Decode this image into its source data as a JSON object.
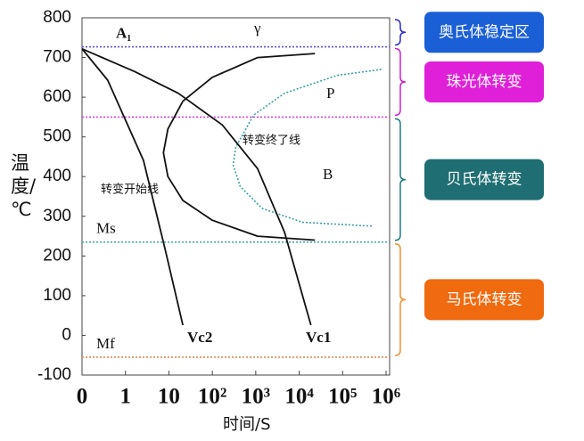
{
  "chart_data": {
    "type": "line",
    "x_label": "时间/S",
    "y_label": "温度/℃",
    "xscale": "log",
    "xlim": [
      0.1,
      1000000
    ],
    "ylim": [
      -100,
      800
    ],
    "xticks": [
      {
        "value": 0.1,
        "label": "0"
      },
      1,
      10,
      {
        "value": 100,
        "label": "10²"
      },
      {
        "value": 1000,
        "label": "10³"
      },
      {
        "value": 10000,
        "label": "10⁴"
      },
      {
        "value": 100000,
        "label": "10⁵"
      },
      {
        "value": 1000000,
        "label": "10⁶"
      }
    ],
    "yticks": [
      -100,
      0,
      100,
      200,
      300,
      400,
      500,
      600,
      700,
      800
    ],
    "grid": false,
    "series": [
      {
        "name": "转变开始线",
        "color": "#111111",
        "dash": false,
        "x": [
          23000,
          1100,
          100,
          21,
          9.5,
          7.5,
          9.5,
          21,
          100,
          1100,
          23000
        ],
        "values": [
          710,
          700,
          650,
          590,
          520,
          460,
          400,
          340,
          290,
          250,
          240
        ]
      },
      {
        "name": "转变终了线",
        "color": "#3aa0a8",
        "dash": true,
        "x": [
          780000,
          75000,
          4600,
          890,
          350,
          300,
          440,
          1400,
          12000,
          500000
        ],
        "values": [
          670,
          655,
          610,
          555,
          475,
          430,
          375,
          320,
          285,
          275
        ]
      },
      {
        "name": "Vc2",
        "color": "#111111",
        "dash": false,
        "x": [
          0.1,
          0.39,
          2.6,
          8.2,
          21
        ],
        "values": [
          722,
          643,
          441,
          217,
          26
        ]
      },
      {
        "name": "Vc1",
        "color": "#111111",
        "dash": false,
        "x": [
          0.1,
          1.6,
          16.5,
          170,
          1100,
          4600,
          18600
        ],
        "values": [
          722,
          665,
          610,
          530,
          420,
          260,
          26
        ]
      }
    ],
    "hlines": [
      {
        "y": 727,
        "label": "A₁",
        "color": "#5a4fd0"
      },
      {
        "y": 550,
        "label": null,
        "color": "#e040e0"
      },
      {
        "y": 235,
        "label": "Ms",
        "color": "#3aa0b0"
      },
      {
        "y": -55,
        "label": "Mf",
        "color": "#e08a50"
      }
    ],
    "annotations": [
      "γ",
      "P",
      "B"
    ],
    "regions": [
      {
        "label": "奥氏体稳定区",
        "color": "#1a5fd6",
        "brace": "#2a2ad0"
      },
      {
        "label": "珠光体转变",
        "color": "#e020d8",
        "brace": "#d020d0"
      },
      {
        "label": "贝氏体转变",
        "color": "#1f6e73",
        "brace": "#1f7a80"
      },
      {
        "label": "马氏体转变",
        "color": "#f06a10",
        "brace": "#f09030"
      }
    ]
  }
}
